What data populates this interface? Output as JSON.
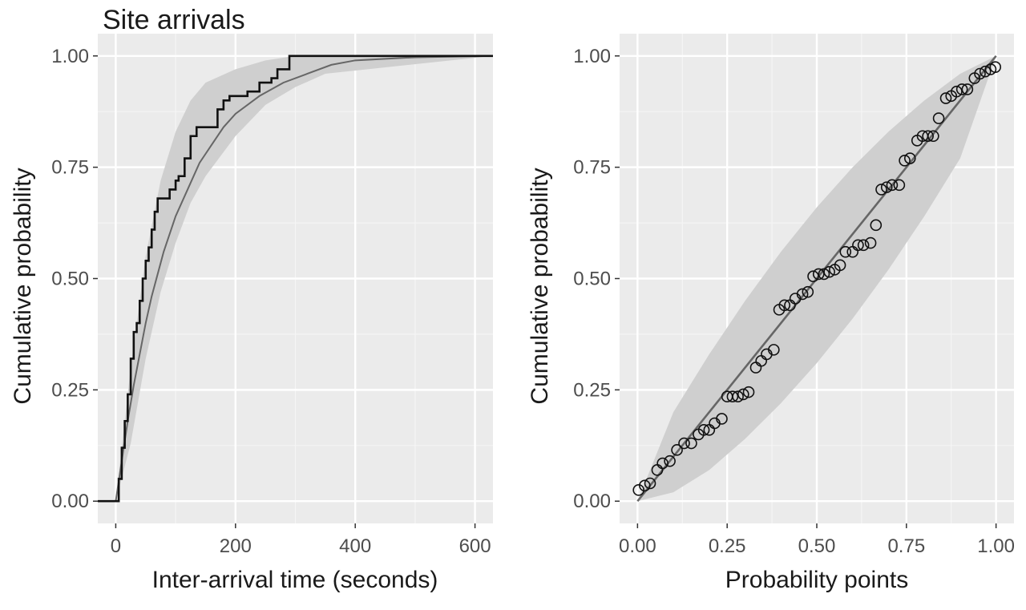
{
  "figure": {
    "title": "Site arrivals"
  },
  "colors": {
    "panel_background": "#ebebeb",
    "grid_major": "#ffffff",
    "grid_minor": "#f5f5f5",
    "band": "#cfcfcf",
    "theory_line": "#666666",
    "data_ink": "#111111"
  },
  "chart_data": [
    {
      "type": "line",
      "panel": "left",
      "title": "Site arrivals",
      "xlabel": "Inter-arrival time (seconds)",
      "ylabel": "Cumulative probability",
      "xlim": [
        -30,
        630
      ],
      "ylim": [
        -0.05,
        1.05
      ],
      "x_ticks": [
        0,
        200,
        400,
        600
      ],
      "x_tick_labels": [
        "0",
        "200",
        "400",
        "600"
      ],
      "y_ticks": [
        0,
        0.25,
        0.5,
        0.75,
        1
      ],
      "y_tick_labels": [
        "0.00",
        "0.25",
        "0.50",
        "0.75",
        "1.00"
      ],
      "grid": true,
      "legend": "none",
      "series": [
        {
          "kind": "step",
          "x": [
            -30,
            0,
            5,
            10,
            15,
            20,
            25,
            30,
            35,
            40,
            45,
            50,
            55,
            60,
            65,
            70,
            75,
            80,
            90,
            100,
            105,
            115,
            125,
            135,
            140,
            145,
            170,
            180,
            190,
            200,
            220,
            240,
            260,
            270,
            290,
            630
          ],
          "y": [
            0,
            0,
            0.05,
            0.12,
            0.18,
            0.24,
            0.32,
            0.38,
            0.4,
            0.45,
            0.5,
            0.54,
            0.57,
            0.61,
            0.65,
            0.68,
            0.68,
            0.68,
            0.7,
            0.72,
            0.73,
            0.77,
            0.82,
            0.84,
            0.84,
            0.84,
            0.88,
            0.9,
            0.91,
            0.91,
            0.92,
            0.94,
            0.95,
            0.97,
            1.0,
            1.0
          ]
        },
        {
          "kind": "theoretical",
          "x": [
            0,
            10,
            20,
            30,
            40,
            50,
            60,
            70,
            80,
            90,
            100,
            120,
            140,
            160,
            180,
            200,
            240,
            280,
            320,
            360,
            400,
            500,
            630
          ],
          "y": [
            0,
            0.09,
            0.18,
            0.26,
            0.33,
            0.4,
            0.46,
            0.51,
            0.56,
            0.6,
            0.64,
            0.7,
            0.76,
            0.8,
            0.84,
            0.87,
            0.91,
            0.94,
            0.96,
            0.98,
            0.99,
            0.997,
            1.0
          ]
        },
        {
          "kind": "band",
          "x": [
            0,
            25,
            50,
            75,
            100,
            125,
            150,
            200,
            250,
            300,
            350,
            630
          ],
          "lower": [
            0,
            0.13,
            0.32,
            0.47,
            0.58,
            0.67,
            0.73,
            0.82,
            0.89,
            0.93,
            0.96,
            1.0
          ],
          "upper": [
            0,
            0.3,
            0.55,
            0.72,
            0.83,
            0.9,
            0.94,
            0.97,
            0.99,
            1.0,
            1.0,
            1.0
          ]
        }
      ]
    },
    {
      "type": "scatter",
      "panel": "right",
      "xlabel": "Probability points",
      "ylabel": "Cumulative probability",
      "xlim": [
        -0.05,
        1.05
      ],
      "ylim": [
        -0.05,
        1.05
      ],
      "x_ticks": [
        0,
        0.25,
        0.5,
        0.75,
        1
      ],
      "x_tick_labels": [
        "0.00",
        "0.25",
        "0.50",
        "0.75",
        "1.00"
      ],
      "y_ticks": [
        0,
        0.25,
        0.5,
        0.75,
        1
      ],
      "y_tick_labels": [
        "0.00",
        "0.25",
        "0.50",
        "0.75",
        "1.00"
      ],
      "grid": true,
      "legend": "none",
      "reference_line": {
        "x": [
          0,
          1
        ],
        "y": [
          0,
          1
        ]
      },
      "band": {
        "x": [
          0,
          0.1,
          0.2,
          0.3,
          0.4,
          0.5,
          0.6,
          0.7,
          0.8,
          0.9,
          1.0
        ],
        "lower": [
          0,
          0.02,
          0.07,
          0.14,
          0.22,
          0.31,
          0.41,
          0.52,
          0.64,
          0.77,
          1.0
        ],
        "upper": [
          0,
          0.2,
          0.33,
          0.45,
          0.56,
          0.66,
          0.75,
          0.83,
          0.9,
          0.96,
          1.0
        ]
      },
      "points": {
        "x": [
          0.003,
          0.02,
          0.035,
          0.055,
          0.07,
          0.09,
          0.11,
          0.13,
          0.15,
          0.17,
          0.185,
          0.2,
          0.215,
          0.235,
          0.25,
          0.265,
          0.28,
          0.295,
          0.31,
          0.33,
          0.345,
          0.36,
          0.38,
          0.395,
          0.41,
          0.425,
          0.44,
          0.46,
          0.475,
          0.49,
          0.505,
          0.52,
          0.535,
          0.55,
          0.565,
          0.58,
          0.6,
          0.615,
          0.63,
          0.65,
          0.665,
          0.68,
          0.695,
          0.71,
          0.73,
          0.745,
          0.76,
          0.78,
          0.795,
          0.81,
          0.825,
          0.84,
          0.86,
          0.875,
          0.89,
          0.905,
          0.92,
          0.94,
          0.955,
          0.97,
          0.985,
          0.998
        ],
        "y": [
          0.025,
          0.035,
          0.04,
          0.07,
          0.085,
          0.09,
          0.115,
          0.13,
          0.13,
          0.15,
          0.16,
          0.16,
          0.175,
          0.185,
          0.235,
          0.235,
          0.235,
          0.24,
          0.245,
          0.3,
          0.315,
          0.33,
          0.34,
          0.43,
          0.44,
          0.44,
          0.455,
          0.465,
          0.47,
          0.505,
          0.51,
          0.51,
          0.515,
          0.52,
          0.53,
          0.56,
          0.56,
          0.575,
          0.575,
          0.58,
          0.62,
          0.7,
          0.705,
          0.71,
          0.71,
          0.765,
          0.77,
          0.81,
          0.82,
          0.82,
          0.82,
          0.86,
          0.905,
          0.91,
          0.92,
          0.925,
          0.925,
          0.95,
          0.96,
          0.965,
          0.97,
          0.975
        ]
      }
    }
  ]
}
